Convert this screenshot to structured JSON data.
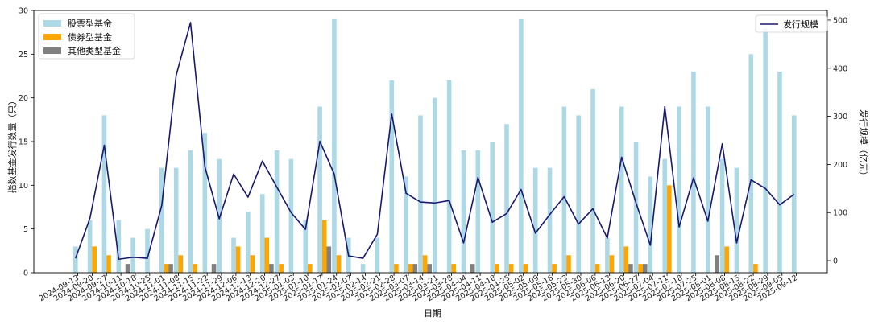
{
  "chart_data": {
    "type": "bar+line",
    "xlabel": "日期",
    "ylabel_left": "指数基金发行数量（只）",
    "ylabel_right": "发行规模（亿元）",
    "ylim_left": [
      0,
      30
    ],
    "ylim_right": [
      -25,
      520
    ],
    "yticks_left": [
      0,
      5,
      10,
      15,
      20,
      25,
      30
    ],
    "yticks_right": [
      0,
      100,
      200,
      300,
      400,
      500
    ],
    "legend_left_position": "top-left",
    "legend_right_position": "top-right",
    "grid": false,
    "categories": [
      "2024-09-13",
      "2024-09-20",
      "2024-09-27",
      "2024-10-11",
      "2024-10-18",
      "2024-10-25",
      "2024-11-01",
      "2024-11-08",
      "2024-11-15",
      "2024-11-22",
      "2024-11-29",
      "2024-12-06",
      "2024-12-13",
      "2024-12-20",
      "2024-12-27",
      "2025-01-03",
      "2025-01-10",
      "2025-01-17",
      "2025-01-24",
      "2025-02-07",
      "2025-02-14",
      "2025-02-21",
      "2025-02-28",
      "2025-03-07",
      "2025-03-14",
      "2025-03-21",
      "2025-03-28",
      "2025-04-04",
      "2025-04-11",
      "2025-04-18",
      "2025-04-25",
      "2025-05-02",
      "2025-05-09",
      "2025-05-16",
      "2025-05-23",
      "2025-05-30",
      "2025-06-06",
      "2025-06-13",
      "2025-06-20",
      "2025-06-27",
      "2025-07-04",
      "2025-07-11",
      "2025-07-18",
      "2025-07-25",
      "2025-08-01",
      "2025-08-08",
      "2025-08-15",
      "2025-08-22",
      "2025-08-29",
      "2025-09-05",
      "2025-09-12"
    ],
    "series": [
      {
        "name": "股票型基金",
        "kind": "bar",
        "color": "#add8e6",
        "values": [
          3,
          6,
          18,
          6,
          4,
          5,
          12,
          12,
          14,
          16,
          13,
          4,
          7,
          9,
          14,
          13,
          6,
          19,
          29,
          4,
          1,
          4,
          22,
          11,
          18,
          20,
          22,
          14,
          14,
          15,
          17,
          29,
          12,
          12,
          19,
          18,
          21,
          4,
          19,
          15,
          11,
          13,
          19,
          23,
          19,
          13,
          12,
          25,
          28,
          23,
          18
        ]
      },
      {
        "name": "债券型基金",
        "kind": "bar",
        "color": "#ffa500",
        "values": [
          0,
          3,
          2,
          0,
          0,
          0,
          1,
          2,
          1,
          0,
          0,
          3,
          2,
          4,
          1,
          0,
          1,
          6,
          2,
          0,
          0,
          0,
          1,
          1,
          2,
          0,
          1,
          0,
          0,
          1,
          1,
          1,
          0,
          1,
          2,
          0,
          1,
          2,
          3,
          1,
          0,
          10,
          0,
          0,
          0,
          3,
          0,
          1,
          0,
          0,
          0
        ]
      },
      {
        "name": "其他类型基金",
        "kind": "bar",
        "color": "#808080",
        "values": [
          0,
          0,
          0,
          1,
          0,
          0,
          1,
          0,
          0,
          1,
          0,
          0,
          0,
          1,
          0,
          0,
          0,
          3,
          0,
          0,
          0,
          0,
          0,
          1,
          1,
          0,
          0,
          1,
          0,
          0,
          0,
          0,
          0,
          0,
          0,
          0,
          0,
          0,
          1,
          1,
          0,
          0,
          0,
          0,
          2,
          0,
          0,
          0,
          0,
          0,
          0
        ]
      },
      {
        "name": "发行规模",
        "kind": "line",
        "axis": "right",
        "color": "#191970",
        "values": [
          5,
          88,
          240,
          3,
          7,
          5,
          115,
          385,
          495,
          195,
          87,
          180,
          132,
          207,
          153,
          100,
          65,
          248,
          180,
          10,
          5,
          55,
          305,
          140,
          122,
          120,
          125,
          37,
          173,
          80,
          98,
          148,
          57,
          96,
          133,
          76,
          108,
          47,
          215,
          120,
          32,
          320,
          70,
          172,
          82,
          243,
          37,
          168,
          150,
          116,
          138
        ]
      }
    ]
  }
}
